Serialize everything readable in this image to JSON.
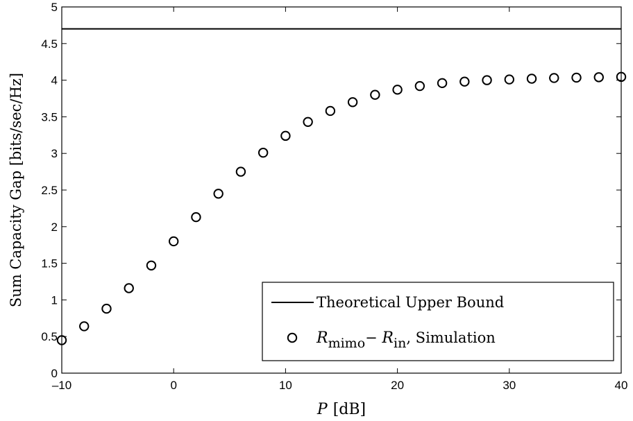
{
  "chart_data": {
    "type": "line",
    "title": "",
    "xlabel": {
      "var": "P",
      "unit": "[dB]"
    },
    "ylabel": "Sum Capacity Gap [bits/sec/Hz]",
    "xlim": [
      -10,
      40
    ],
    "ylim": [
      0,
      5
    ],
    "xticks": [
      -10,
      0,
      10,
      20,
      30,
      40
    ],
    "xtick_labels": [
      "–10",
      "0",
      "10",
      "20",
      "30",
      "40"
    ],
    "yticks": [
      0,
      0.5,
      1,
      1.5,
      2,
      2.5,
      3,
      3.5,
      4,
      4.5,
      5
    ],
    "ytick_labels": [
      "0",
      "0.5",
      "1",
      "1.5",
      "2",
      "2.5",
      "3",
      "3.5",
      "4",
      "4.5",
      "5"
    ],
    "grid": false,
    "legend_position": "bottom-right",
    "series": [
      {
        "name": "Theoretical Upper Bound",
        "style": "solid-line",
        "color": "#000000",
        "x": [
          -10,
          40
        ],
        "y": [
          4.7,
          4.7
        ]
      },
      {
        "name": {
          "r1": "R",
          "s1": "mimo",
          "minus": "− ",
          "r2": "R",
          "s2": "in",
          "rest": ", Simulation"
        },
        "style": "open-circle",
        "color": "#000000",
        "x": [
          -10,
          -8,
          -6,
          -4,
          -2,
          0,
          2,
          4,
          6,
          8,
          10,
          12,
          14,
          16,
          18,
          20,
          22,
          24,
          26,
          28,
          30,
          32,
          34,
          36,
          38,
          40
        ],
        "y": [
          0.45,
          0.64,
          0.88,
          1.16,
          1.47,
          1.8,
          2.13,
          2.45,
          2.75,
          3.01,
          3.24,
          3.43,
          3.58,
          3.7,
          3.8,
          3.87,
          3.92,
          3.96,
          3.98,
          4.0,
          4.01,
          4.02,
          4.03,
          4.035,
          4.04,
          4.045
        ]
      }
    ]
  }
}
